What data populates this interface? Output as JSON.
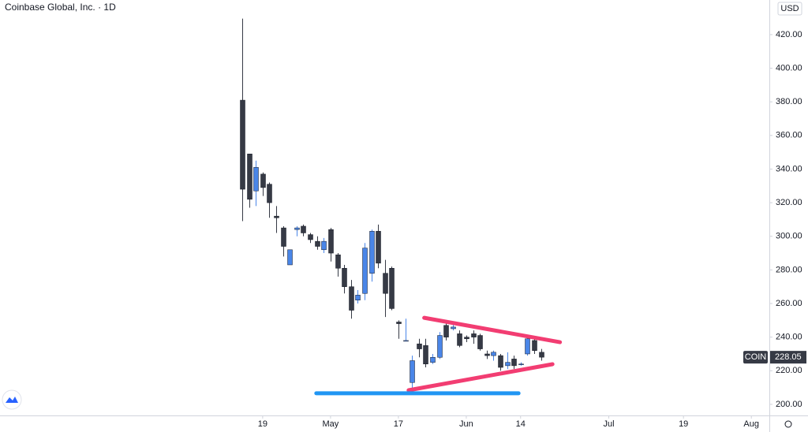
{
  "chart_data": {
    "type": "candlestick",
    "title": "Coinbase Global, Inc. · 1D",
    "currency": "USD",
    "x": [
      -3,
      -2,
      -1,
      0,
      1,
      2,
      3,
      4,
      5,
      6,
      7,
      8,
      9,
      10,
      11,
      12,
      13,
      14,
      15,
      16,
      17,
      18,
      19,
      20,
      21,
      22,
      23,
      24,
      25,
      26,
      27,
      28,
      29,
      30,
      31,
      32,
      33,
      34,
      35,
      36,
      37,
      38,
      39,
      40,
      41
    ],
    "open": [
      381,
      349,
      327,
      337,
      331,
      312,
      305,
      283,
      304,
      306,
      301,
      297,
      292,
      304,
      289,
      281,
      270,
      262,
      266,
      278,
      303,
      278,
      281,
      249,
      238,
      213,
      236,
      235,
      225,
      228,
      247,
      245,
      242,
      240,
      242,
      241,
      230,
      229,
      229,
      223,
      227,
      224,
      230,
      238,
      231
    ],
    "high": [
      429.5,
      349,
      345,
      338,
      332,
      318,
      306,
      292,
      306,
      307,
      302,
      300,
      299,
      305,
      290,
      283,
      274,
      268,
      296,
      304,
      307,
      286,
      282,
      250,
      251,
      229,
      239,
      239,
      230,
      243,
      250,
      248,
      244,
      241,
      244,
      242,
      232,
      232,
      230,
      231,
      229,
      225,
      240,
      239,
      233
    ],
    "low": [
      309,
      317,
      318,
      324,
      311,
      302,
      288,
      283,
      300,
      300,
      296,
      292,
      290,
      285,
      276,
      266,
      251,
      260,
      262,
      273,
      281,
      252,
      256,
      239,
      238,
      209,
      228,
      222,
      224,
      227,
      238,
      244,
      234,
      237,
      236,
      232,
      227,
      226,
      220,
      221,
      221,
      223,
      229,
      230,
      226
    ],
    "close": [
      328,
      322,
      341,
      329,
      320,
      311,
      294,
      292,
      305,
      302,
      298,
      294,
      297,
      290,
      281,
      270,
      256,
      265,
      293,
      303,
      284,
      266,
      257,
      248,
      238,
      226,
      233,
      224,
      228,
      241,
      240,
      246,
      235,
      239,
      240,
      233,
      229,
      231,
      222,
      225,
      223,
      224,
      239,
      232,
      228.05
    ],
    "up_color": "#4a86e8",
    "down_color": "#363a45",
    "xlim": [
      -38.7,
      74.65
    ],
    "ylim": [
      193.4,
      440.6
    ],
    "xticks": [
      {
        "value": 0,
        "label": "19"
      },
      {
        "value": 10,
        "label": "May"
      },
      {
        "value": 20,
        "label": "17"
      },
      {
        "value": 30,
        "label": "Jun"
      },
      {
        "value": 38,
        "label": "14"
      },
      {
        "value": 51,
        "label": "Jul"
      },
      {
        "value": 62,
        "label": "19"
      },
      {
        "value": 72,
        "label": "Aug"
      }
    ],
    "yticks": [
      {
        "value": 200,
        "label": "200.00"
      },
      {
        "value": 220,
        "label": "220.00"
      },
      {
        "value": 240,
        "label": "240.00"
      },
      {
        "value": 260,
        "label": "260.00"
      },
      {
        "value": 280,
        "label": "280.00"
      },
      {
        "value": 300,
        "label": "300.00"
      },
      {
        "value": 320,
        "label": "320.00"
      },
      {
        "value": 340,
        "label": "340.00"
      },
      {
        "value": 360,
        "label": "360.00"
      },
      {
        "value": 380,
        "label": "380.00"
      },
      {
        "value": 400,
        "label": "400.00"
      },
      {
        "value": 420,
        "label": "420.00"
      }
    ],
    "last_price": {
      "symbol": "COIN",
      "value": 228.05,
      "label": "228.05"
    },
    "drawings": [
      {
        "color": "#f23d72",
        "x": [
          23.8,
          43.8
        ],
        "y": [
          251.5,
          237
        ]
      },
      {
        "color": "#f23d72",
        "x": [
          21.5,
          42.7
        ],
        "y": [
          208.4,
          223.9
        ]
      },
      {
        "color": "#2196f3",
        "x": [
          7.9,
          37.7
        ],
        "y": [
          206.6,
          206.6
        ]
      }
    ]
  }
}
